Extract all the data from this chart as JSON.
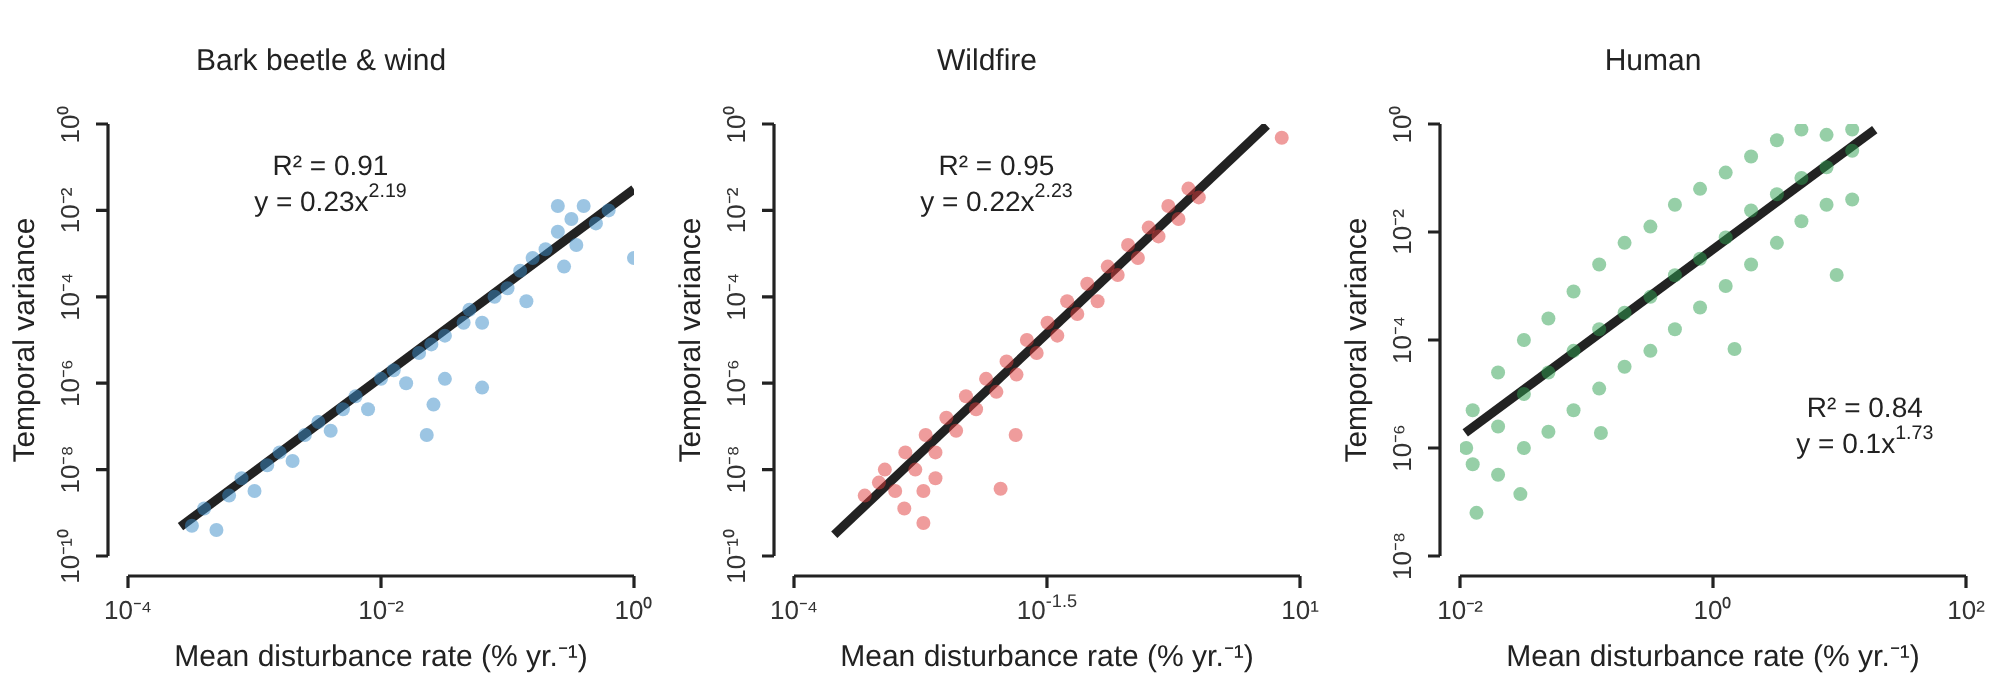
{
  "chart_data": [
    {
      "type": "scatter",
      "title": "Bark beetle & wind",
      "xlabel": "Mean disturbance rate (% yr.⁻¹)",
      "ylabel": "Temporal variance",
      "log": "xy",
      "annotations": [
        "R² = 0.91",
        "y = 0.23x$^{2.19}$"
      ],
      "xlim": [
        0.0001,
        1
      ],
      "xticks": [
        {
          "value": 0.0001,
          "label": "10⁻⁴"
        },
        {
          "value": 0.01,
          "label": "10⁻²"
        },
        {
          "value": 1,
          "label": "10⁰"
        }
      ],
      "ylim": [
        1e-10,
        1
      ],
      "yticks": [
        {
          "value": 1e-10,
          "label": "10⁻¹⁰"
        },
        {
          "value": 1e-08,
          "label": "10⁻⁸"
        },
        {
          "value": 1e-06,
          "label": "10⁻⁶"
        },
        {
          "value": 0.0001,
          "label": "10⁻⁴"
        },
        {
          "value": 0.01,
          "label": "10⁻²"
        },
        {
          "value": 1,
          "label": "10⁰"
        }
      ],
      "series": [
        {
          "marker": "circle",
          "color": "#3a8cc8",
          "x": [
            0.00032,
            0.0004,
            0.0005,
            0.00063,
            0.00079,
            0.001,
            0.00126,
            0.00158,
            0.002,
            0.0025,
            0.0032,
            0.004,
            0.005,
            0.0063,
            0.0079,
            0.01,
            0.0126,
            0.0158,
            0.02,
            0.025,
            0.032,
            0.045,
            0.05,
            0.063,
            0.079,
            0.1,
            0.126,
            0.141,
            0.158,
            0.2,
            0.25,
            0.28,
            0.32,
            0.35,
            0.4,
            0.5,
            0.63,
            1,
            0.023,
            0.026,
            0.063,
            0.032,
            0.25
          ],
          "values": [
            5e-10,
            1.26e-09,
            4e-10,
            2.5e-09,
            6.3e-09,
            3.2e-09,
            1.26e-08,
            2.5e-08,
            1.58e-08,
            6.3e-08,
            1.26e-07,
            7.9e-08,
            2.5e-07,
            5e-07,
            2.5e-07,
            1.26e-06,
            2e-06,
            1e-06,
            5e-06,
            7.9e-06,
            1.26e-05,
            2.5e-05,
            5e-05,
            2.5e-05,
            0.0001,
            0.000158,
            0.0004,
            7.9e-05,
            0.00079,
            0.00126,
            0.0032,
            0.0005,
            0.0063,
            0.00158,
            0.0126,
            0.005,
            0.01,
            0.00079,
            6.3e-08,
            3.2e-07,
            7.9e-07,
            1.26e-06,
            0.0126
          ]
        },
        {
          "type": "line",
          "color": "#222222",
          "x": [
            0.00026,
            1
          ],
          "values": [
            4.8e-10,
            0.031
          ]
        }
      ]
    },
    {
      "type": "scatter",
      "title": "Wildfire",
      "xlabel": "Mean disturbance rate (% yr.⁻¹)",
      "ylabel": "Temporal variance",
      "log": "xy",
      "annotations": [
        "R² = 0.95",
        "y = 0.22x$^{2.23}$"
      ],
      "xlim": [
        0.0001,
        10
      ],
      "xticks": [
        {
          "value": 0.0001,
          "label": "10⁻⁴"
        },
        {
          "value": 0.0316,
          "label": "10$^{-1.5}$"
        },
        {
          "value": 10,
          "label": "10¹"
        }
      ],
      "ylim": [
        1e-10,
        1
      ],
      "yticks": [
        {
          "value": 1e-10,
          "label": "10⁻¹⁰"
        },
        {
          "value": 1e-08,
          "label": "10⁻⁸"
        },
        {
          "value": 1e-06,
          "label": "10⁻⁶"
        },
        {
          "value": 0.0001,
          "label": "10⁻⁴"
        },
        {
          "value": 0.01,
          "label": "10⁻²"
        },
        {
          "value": 1,
          "label": "10⁰"
        }
      ],
      "series": [
        {
          "marker": "circle",
          "color": "#e03a3a",
          "x": [
            0.0005,
            0.00079,
            0.001,
            0.00126,
            0.00158,
            0.002,
            0.0025,
            0.0032,
            0.004,
            0.005,
            0.0063,
            0.0079,
            0.01,
            0.0126,
            0.0158,
            0.02,
            0.025,
            0.032,
            0.04,
            0.05,
            0.063,
            0.079,
            0.1,
            0.126,
            0.158,
            0.2,
            0.25,
            0.32,
            0.4,
            0.5,
            0.63,
            0.79,
            1,
            6.6,
            0.00123,
            0.0019,
            0.0019,
            0.0025,
            0.011,
            0.0155,
            0.00069
          ],
          "values": [
            2.5e-09,
            1e-08,
            3.2e-09,
            2.5e-08,
            1e-08,
            6.3e-08,
            2.5e-08,
            1.58e-07,
            7.9e-08,
            5e-07,
            2.5e-07,
            1.26e-06,
            6.3e-07,
            3.2e-06,
            1.58e-06,
            1e-05,
            5e-06,
            2.5e-05,
            1.26e-05,
            7.9e-05,
            4e-05,
            0.0002,
            7.9e-05,
            0.0005,
            0.00032,
            0.00158,
            0.00079,
            0.004,
            0.0025,
            0.0126,
            0.0063,
            0.032,
            0.02,
            0.48,
            1.26e-09,
            5.8e-10,
            3.2e-09,
            6.3e-09,
            3.6e-09,
            6.3e-08,
            5e-09
          ]
        },
        {
          "type": "line",
          "color": "#222222",
          "x": [
            0.00025,
            4.7
          ],
          "values": [
            3.1e-10,
            0.93
          ]
        }
      ]
    },
    {
      "type": "scatter",
      "title": "Human",
      "xlabel": "Mean disturbance rate (% yr.⁻¹)",
      "ylabel": "Temporal variance",
      "log": "xy",
      "annotations": [
        "R² = 0.84",
        "y = 0.1x$^{1.73}$"
      ],
      "xlim": [
        0.01,
        100
      ],
      "xticks": [
        {
          "value": 0.01,
          "label": "10⁻²"
        },
        {
          "value": 1,
          "label": "10⁰"
        },
        {
          "value": 100,
          "label": "10²"
        }
      ],
      "ylim": [
        1e-08,
        1
      ],
      "yticks": [
        {
          "value": 1e-08,
          "label": "10⁻⁸"
        },
        {
          "value": 1e-06,
          "label": "10⁻⁶"
        },
        {
          "value": 0.0001,
          "label": "10⁻⁴"
        },
        {
          "value": 0.01,
          "label": "10⁻²"
        },
        {
          "value": 1,
          "label": "10⁰"
        }
      ],
      "series": [
        {
          "marker": "circle",
          "color": "#2ea050",
          "x": [
            0.0126,
            0.0126,
            0.0112,
            0.02,
            0.02,
            0.02,
            0.0135,
            0.032,
            0.032,
            0.032,
            0.05,
            0.05,
            0.05,
            0.079,
            0.079,
            0.079,
            0.126,
            0.126,
            0.126,
            0.2,
            0.2,
            0.2,
            0.32,
            0.32,
            0.32,
            0.5,
            0.5,
            0.5,
            0.79,
            0.79,
            0.79,
            1.26,
            1.26,
            1.26,
            2,
            2,
            2,
            3.2,
            3.2,
            3.2,
            5,
            5,
            5,
            7.9,
            7.9,
            7.9,
            12.6,
            12.6,
            12.6,
            9.5,
            1.48,
            0.13,
            0.03
          ],
          "values": [
            5e-06,
            5e-07,
            1e-06,
            2.5e-05,
            2.5e-06,
            3.2e-07,
            6.3e-08,
            0.0001,
            1e-05,
            1e-06,
            0.00025,
            2.5e-05,
            2e-06,
            0.00079,
            6.3e-05,
            5e-06,
            0.0025,
            0.000158,
            1.26e-05,
            0.0063,
            0.00032,
            3.2e-05,
            0.0126,
            0.00063,
            6.3e-05,
            0.032,
            0.00158,
            0.000158,
            0.063,
            0.0032,
            0.0004,
            0.126,
            0.0079,
            0.001,
            0.25,
            0.025,
            0.0025,
            0.5,
            0.05,
            0.0063,
            0.79,
            0.1,
            0.0158,
            0.63,
            0.158,
            0.032,
            0.79,
            0.32,
            0.04,
            0.0016,
            6.8e-05,
            1.9e-06,
            1.4e-07
          ]
        },
        {
          "type": "line",
          "color": "#222222",
          "x": [
            0.011,
            19
          ],
          "values": [
            1.9e-06,
            0.79
          ]
        }
      ]
    }
  ]
}
